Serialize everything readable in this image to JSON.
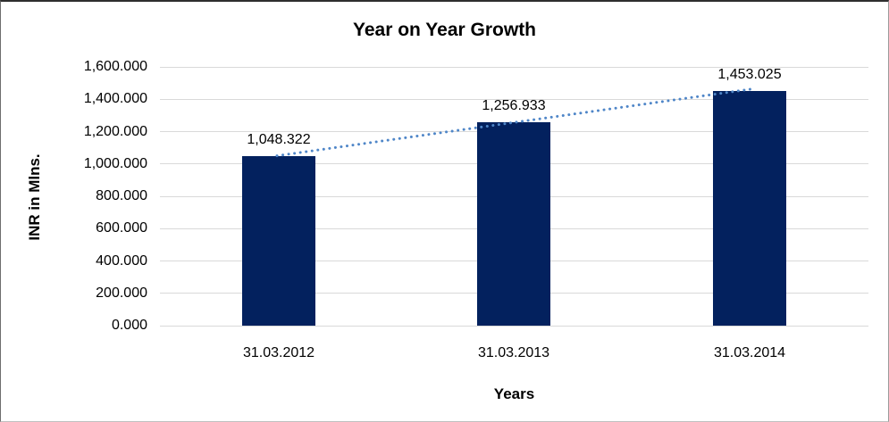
{
  "chart_data": {
    "type": "bar",
    "title": "Year on Year Growth",
    "xlabel": "Years",
    "ylabel": "INR in Mlns.",
    "categories": [
      "31.03.2012",
      "31.03.2013",
      "31.03.2014"
    ],
    "values": [
      1048.322,
      1256.933,
      1453.025
    ],
    "data_labels": [
      "1,048.322",
      "1,256.933",
      "1,453.025"
    ],
    "y_ticks": [
      "1,600.000",
      "1,400.000",
      "1,200.000",
      "1,000.000",
      "800.000",
      "600.000",
      "400.000",
      "200.000",
      "0.000"
    ],
    "y_tick_values": [
      1600,
      1400,
      1200,
      1000,
      800,
      600,
      400,
      200,
      0
    ],
    "ylim": [
      0,
      1600
    ],
    "grid": true,
    "legend": "none",
    "trendline": {
      "style": "dotted",
      "fit": "linear",
      "color": "#4F86C8"
    },
    "colors": {
      "bar": "#03215E",
      "gridline": "#D9D9D9",
      "text": "#000000",
      "background": "#FFFFFF"
    }
  }
}
